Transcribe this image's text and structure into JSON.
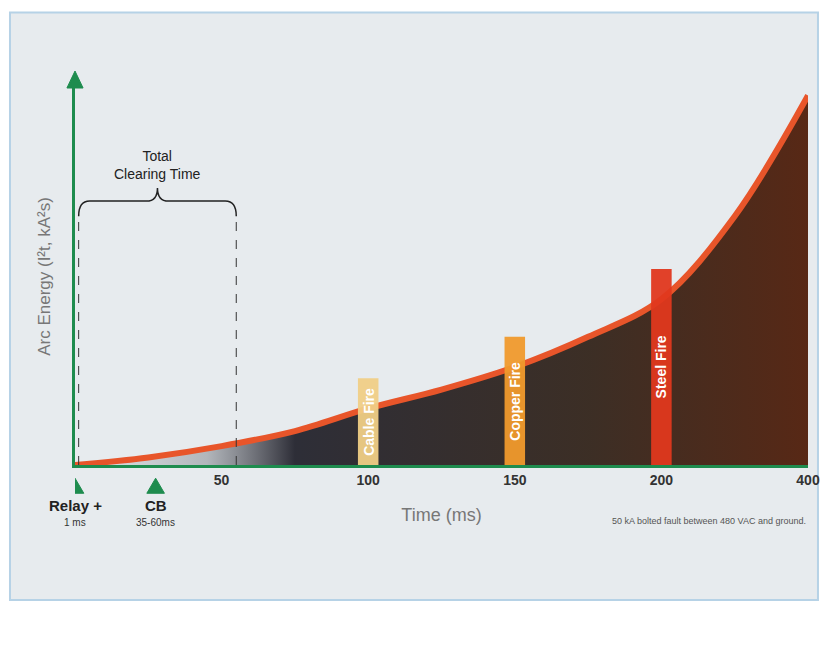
{
  "chart_data": {
    "type": "line",
    "categories": [
      null,
      null,
      "50",
      null,
      "100",
      null,
      "150",
      null,
      "200",
      null,
      "400"
    ],
    "values": [
      0,
      2,
      5,
      9,
      15,
      20,
      26,
      34,
      44,
      66,
      98
    ],
    "color": "#e8552a",
    "ylim": [
      0,
      100
    ],
    "tick_labels": "x",
    "grid": false,
    "xlabel": "Time (ms)",
    "ylabel": "Arc Energy (I²t, kA²s)",
    "events": [
      {
        "text": "Cable Fire",
        "category": "100",
        "color": "#f0cf86"
      },
      {
        "text": "Copper Fire",
        "category": "150",
        "color": "#f09a2c"
      },
      {
        "text": "Steel Fire",
        "category": "200",
        "color": "#e0381e"
      }
    ],
    "bracket": {
      "text": "Total Clearing Time",
      "end": "50"
    },
    "markers": [
      {
        "label": "Relay +",
        "note": "1 ms"
      },
      {
        "label": "CB",
        "note": "35-60ms"
      }
    ],
    "note": "50 kA bolted fault between 480 VAC and ground."
  }
}
